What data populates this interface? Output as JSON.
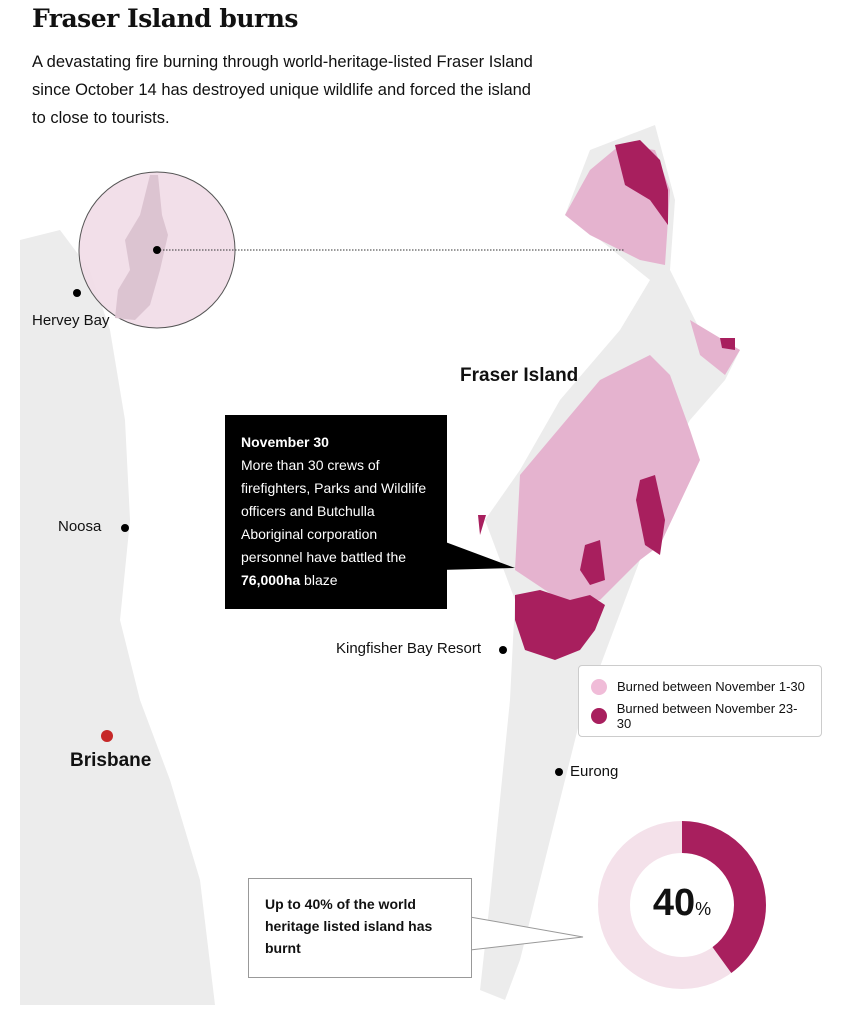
{
  "title": "Fraser Island burns",
  "subtitle": "A devastating fire burning through world-heritage-listed Fraser Island since October 14 has destroyed unique wildlife and forced the island to close to tourists.",
  "places": {
    "hervey_bay": "Hervey Bay",
    "noosa": "Noosa",
    "brisbane": "Brisbane",
    "fraser_island": "Fraser Island",
    "kingfisher": "Kingfisher Bay Resort",
    "eurong": "Eurong"
  },
  "callout": {
    "date": "November 30",
    "text_before": "More than 30 crews of firefighters, Parks and Wildlife officers and Butchulla Aboriginal corporation personnel have battled the ",
    "area": "76,000ha",
    "text_after": " blaze"
  },
  "legend": [
    {
      "label": "Burned between November 1-30",
      "color": "#e8b4d0"
    },
    {
      "label": "Burned between November 23-30",
      "color": "#a81f5e"
    }
  ],
  "note": "Up to 40% of the world heritage listed island has burnt",
  "donut": {
    "value": 40,
    "unit": "%",
    "color_burnt": "#a81f5e",
    "color_rest": "#f4e1ea"
  },
  "colors": {
    "land": "#ececec",
    "capital": "#c62828"
  }
}
